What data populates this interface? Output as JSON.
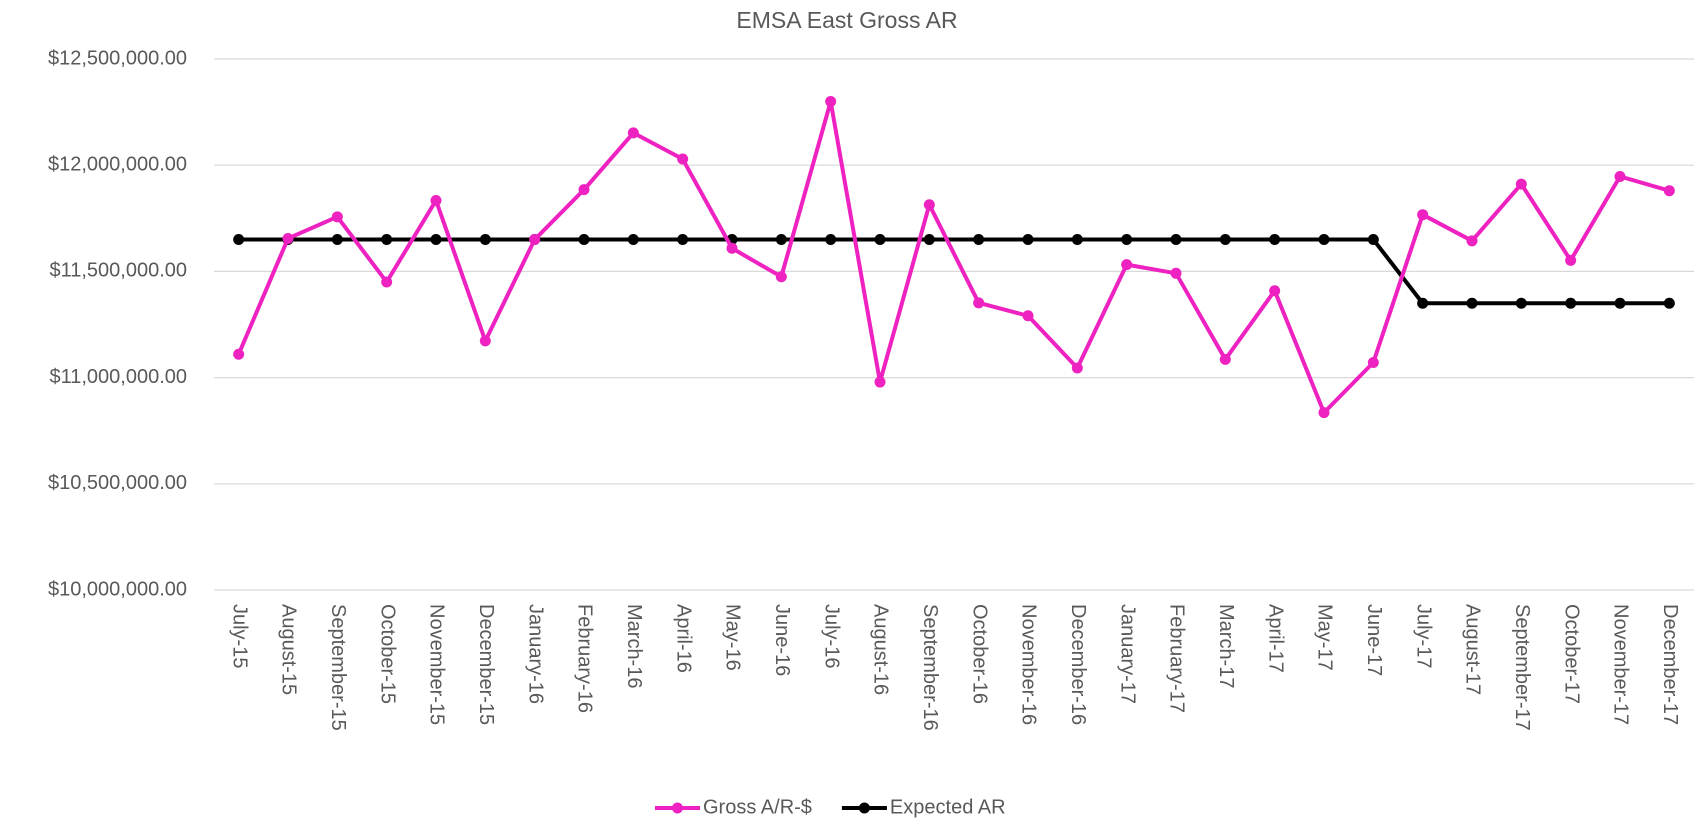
{
  "chart_data": {
    "type": "line",
    "title": "EMSA East Gross AR",
    "categories": [
      "July-15",
      "August-15",
      "September-15",
      "October-15",
      "November-15",
      "December-15",
      "January-16",
      "February-16",
      "March-16",
      "April-16",
      "May-16",
      "June-16",
      "July-16",
      "August-16",
      "September-16",
      "October-16",
      "November-16",
      "December-16",
      "January-17",
      "February-17",
      "March-17",
      "April-17",
      "May-17",
      "June-17",
      "July-17",
      "August-17",
      "September-17",
      "October-17",
      "November-17",
      "December-17"
    ],
    "series": [
      {
        "name": "Gross A/R-$",
        "color": "#ee22c0",
        "values": [
          11110000,
          11655000,
          11757000,
          11450000,
          11834000,
          11173000,
          11650000,
          11885000,
          12152000,
          12029000,
          11609000,
          11475000,
          12300000,
          10979000,
          11814000,
          11352000,
          11291000,
          11045000,
          11532000,
          11491000,
          11086000,
          11409000,
          10835000,
          11071000,
          11767000,
          11644000,
          11911000,
          11552000,
          11947000,
          11880000
        ]
      },
      {
        "name": "Expected AR",
        "color": "#000000",
        "values": [
          11650000,
          11650000,
          11650000,
          11650000,
          11650000,
          11650000,
          11650000,
          11650000,
          11650000,
          11650000,
          11650000,
          11650000,
          11650000,
          11650000,
          11650000,
          11650000,
          11650000,
          11650000,
          11650000,
          11650000,
          11650000,
          11650000,
          11650000,
          11650000,
          11350000,
          11350000,
          11350000,
          11350000,
          11350000,
          11350000
        ]
      }
    ],
    "ylim": [
      10000000,
      12500000
    ],
    "yticks": [
      {
        "value": 10000000,
        "label": "$10,000,000.00"
      },
      {
        "value": 10500000,
        "label": "$10,500,000.00"
      },
      {
        "value": 11000000,
        "label": "$11,000,000.00"
      },
      {
        "value": 11500000,
        "label": "$11,500,000.00"
      },
      {
        "value": 12000000,
        "label": "$12,000,000.00"
      },
      {
        "value": 12500000,
        "label": "$12,500,000.00"
      }
    ],
    "grid": true,
    "legend": "bottom"
  }
}
